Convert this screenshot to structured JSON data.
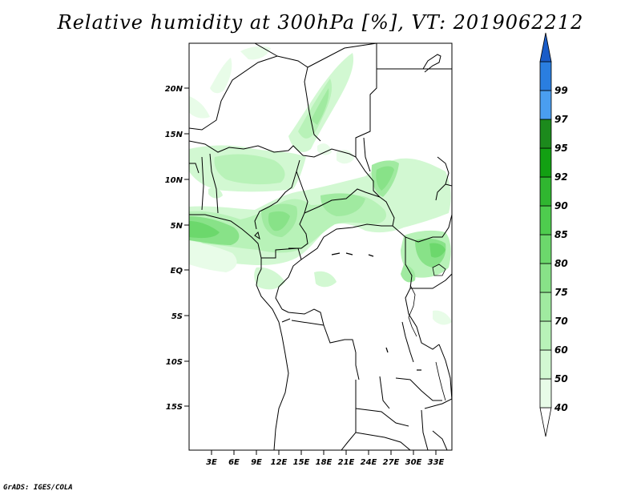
{
  "title": "Relative humidity at 300hPa [%], VT: 2019062212",
  "credit": "GrADS: IGES/COLA",
  "map": {
    "lat_ticks": [
      "20N",
      "15N",
      "10N",
      "5N",
      "EQ",
      "5S",
      "10S",
      "15S"
    ],
    "lon_ticks": [
      "3E",
      "6E",
      "9E",
      "12E",
      "15E",
      "18E",
      "21E",
      "24E",
      "27E",
      "30E",
      "33E"
    ],
    "extent": {
      "lon": [
        0,
        35
      ],
      "lat": [
        -20,
        25
      ]
    }
  },
  "colorbar": {
    "levels": [
      "40",
      "50",
      "60",
      "70",
      "75",
      "80",
      "85",
      "90",
      "92",
      "95",
      "97",
      "99"
    ],
    "colors": [
      "#ffffff",
      "#e8fce8",
      "#d2f8d2",
      "#b8f2b8",
      "#a0eaa0",
      "#88e288",
      "#6cd86c",
      "#4ecc4e",
      "#30b630",
      "#12a012",
      "#1c8a1c",
      "#4a9ef0",
      "#2a7ee0",
      "#1a5cc8"
    ]
  }
}
